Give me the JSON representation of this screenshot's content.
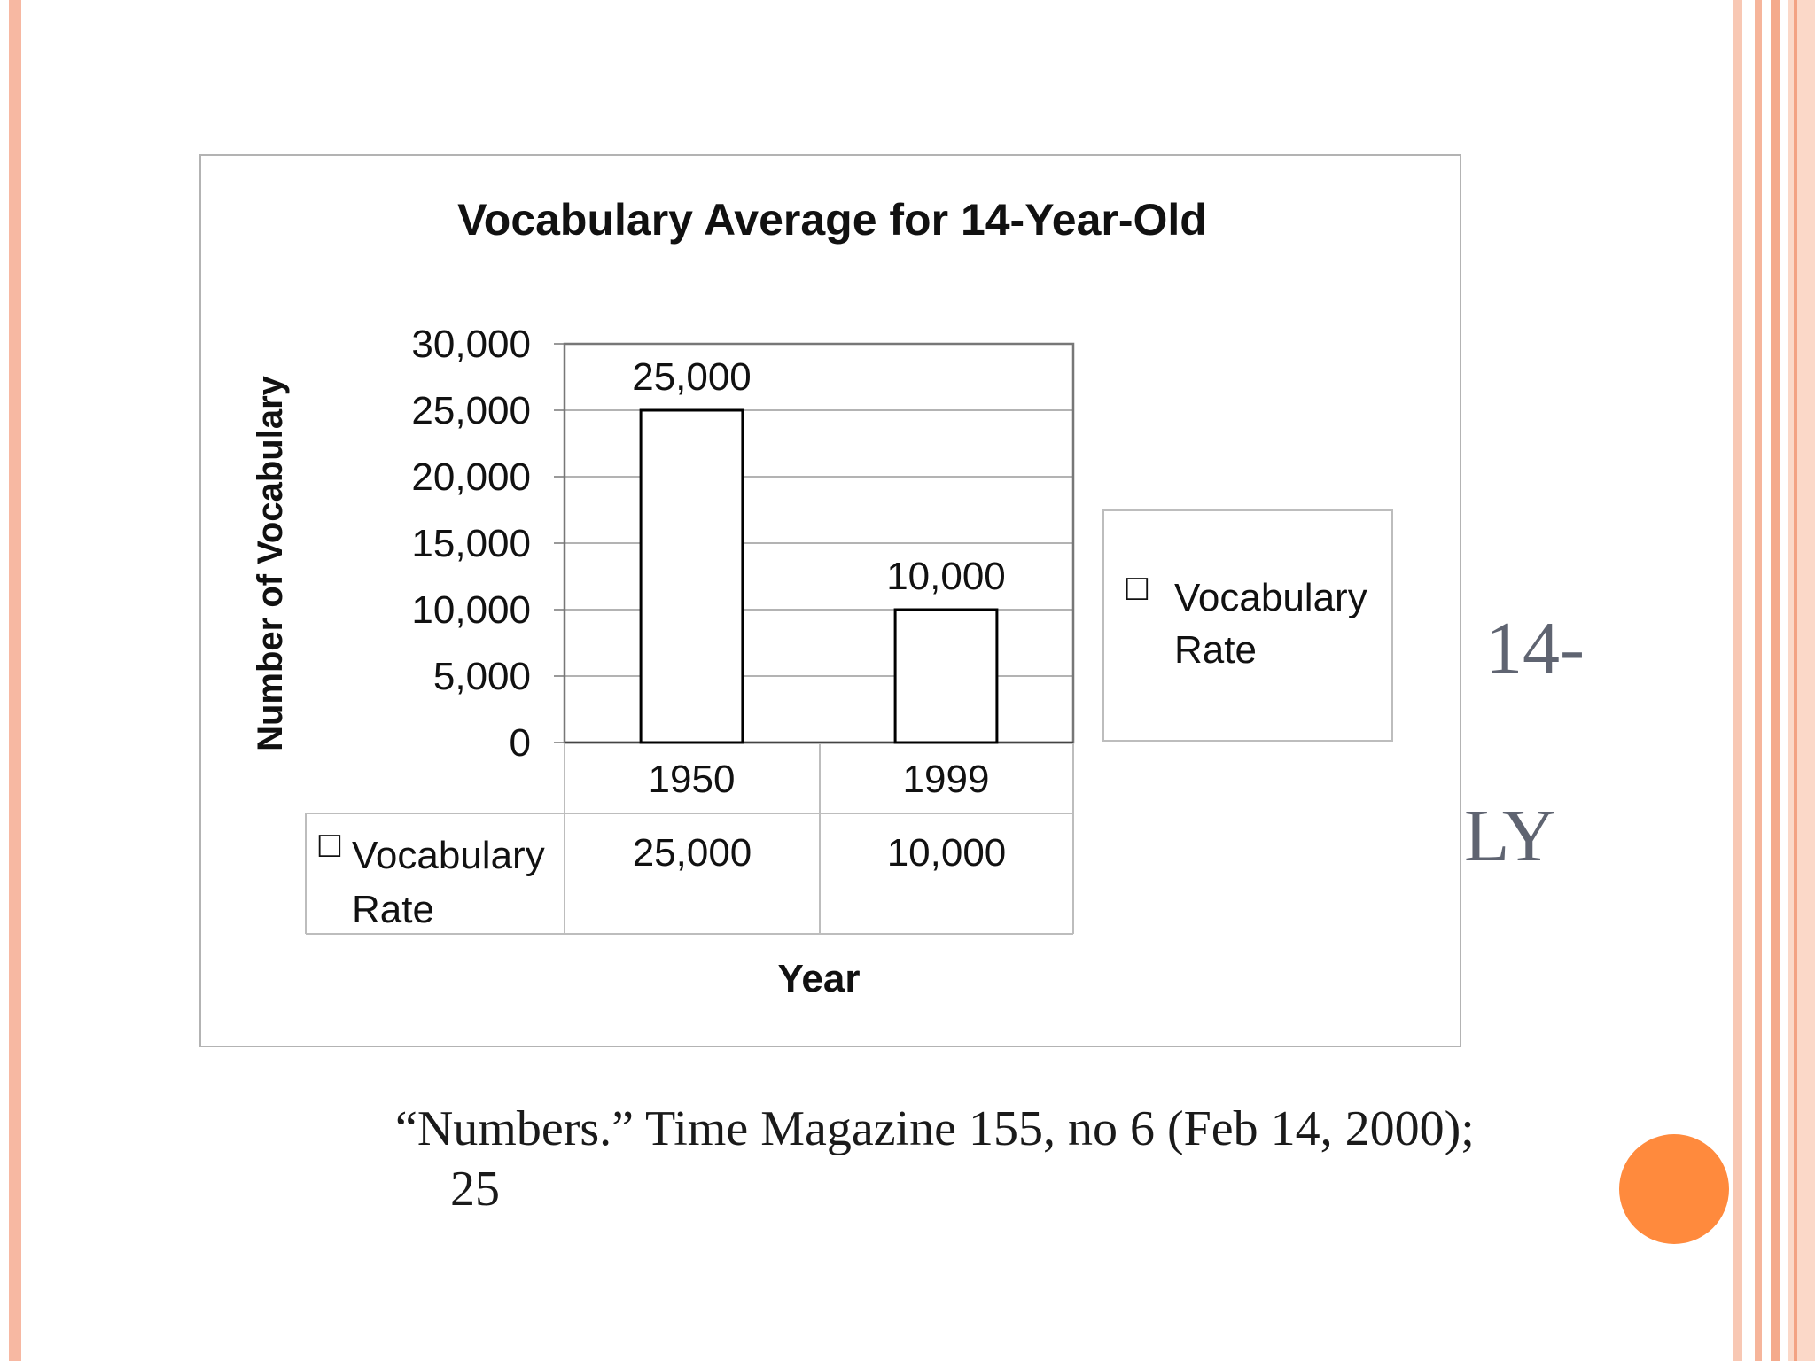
{
  "slide": {
    "bg_title_lines": [
      "14-",
      "LY"
    ],
    "citation_line1": "“Numbers.” Time Magazine 155, no 6 (Feb 14, 2000);",
    "citation_line2": "25",
    "colors": {
      "accent_stripe": "#f7b8a2",
      "dot": "#ff8a3d"
    }
  },
  "chart_data": {
    "type": "bar",
    "title": "Vocabulary Average for 14-Year-Old",
    "xlabel": "Year",
    "ylabel": "Number of Vocabulary",
    "categories": [
      "1950",
      "1999"
    ],
    "series": [
      {
        "name": "Vocabulary Rate",
        "values": [
          25000,
          10000
        ],
        "labels": [
          "25,000",
          "10,000"
        ]
      }
    ],
    "ylim": [
      0,
      30000
    ],
    "yticks": [
      0,
      5000,
      10000,
      15000,
      20000,
      25000,
      30000
    ],
    "ytick_labels": [
      "0",
      "5,000",
      "10,000",
      "15,000",
      "20,000",
      "25,000",
      "30,000"
    ],
    "legend": {
      "position": "right",
      "marker": "☐",
      "text_lines": [
        "Vocabulary",
        "Rate"
      ]
    },
    "data_table": {
      "row_label_lines": [
        "Vocabulary",
        "Rate"
      ],
      "marker": "☐",
      "values": [
        "25,000",
        "10,000"
      ]
    },
    "grid": true,
    "bar_fill": "#ffffff",
    "bar_stroke": "#000000"
  }
}
